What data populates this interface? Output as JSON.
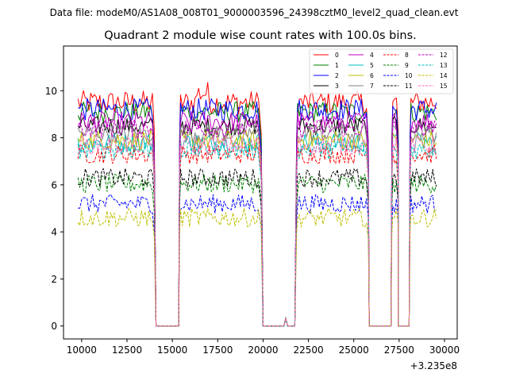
{
  "header": {
    "data_file": "Data file: modeM0/AS1A08_008T01_9000003596_24398cztM0_level2_quad_clean.evt"
  },
  "chart_data": {
    "type": "line",
    "title": "Quadrant 2 module wise count rates with 100.0s bins.",
    "xlabel": "",
    "ylabel": "",
    "x_offset_label": "+3.235e8",
    "xlim": [
      9000,
      30700
    ],
    "ylim": [
      -0.55,
      11.9
    ],
    "x_ticks": [
      10000,
      12500,
      15000,
      17500,
      20000,
      22500,
      25000,
      27500,
      30000
    ],
    "x_tick_labels": [
      "10000",
      "12500",
      "15000",
      "17500",
      "20000",
      "22500",
      "25000",
      "27500",
      "30000"
    ],
    "y_ticks": [
      0,
      2,
      4,
      6,
      8,
      10
    ],
    "y_tick_labels": [
      "0",
      "2",
      "4",
      "6",
      "8",
      "10"
    ],
    "grid": false,
    "legend_position": "top-right",
    "bin_size_s": 100,
    "segments": [
      {
        "start": 9800,
        "end": 13900
      },
      {
        "start": 15450,
        "end": 19800
      },
      {
        "start": 21900,
        "end": 25700
      },
      {
        "start": 27150,
        "end": 27350
      },
      {
        "start": 28150,
        "end": 29600
      }
    ],
    "segment_edges": [
      {
        "x": 14050,
        "prev_end": 13900,
        "next_start": null
      },
      {
        "x": 15350,
        "prev_end": null,
        "next_start": 15450
      },
      {
        "x": 19950,
        "prev_end": 19800,
        "next_start": null
      },
      {
        "x": 21750,
        "prev_end": null,
        "next_start": 21900
      },
      {
        "x": 25800,
        "prev_end": 25700,
        "next_start": null
      },
      {
        "x": 27100,
        "prev_end": null,
        "next_start": 27150
      },
      {
        "x": 27400,
        "prev_end": 27350,
        "next_start": null
      },
      {
        "x": 28050,
        "prev_end": null,
        "next_start": 28150
      }
    ],
    "gaps": [
      {
        "start": 14100,
        "end": 15350
      },
      {
        "start": 20000,
        "end": 21750
      },
      {
        "start": 25850,
        "end": 27050
      },
      {
        "start": 27450,
        "end": 28050
      }
    ],
    "spike": {
      "x": 21250,
      "value": 0.35
    },
    "series": [
      {
        "name": "0",
        "color": "#ff0000",
        "dash": "solid",
        "level": 9.5,
        "noise": 0.32
      },
      {
        "name": "1",
        "color": "#008000",
        "dash": "solid",
        "level": 9.1,
        "noise": 0.28
      },
      {
        "name": "2",
        "color": "#0000ff",
        "dash": "solid",
        "level": 9.2,
        "noise": 0.3
      },
      {
        "name": "3",
        "color": "#000000",
        "dash": "solid",
        "level": 8.5,
        "noise": 0.25
      },
      {
        "name": "4",
        "color": "#bf00bf",
        "dash": "solid",
        "level": 8.7,
        "noise": 0.27
      },
      {
        "name": "5",
        "color": "#00bfbf",
        "dash": "solid",
        "level": 7.8,
        "noise": 0.27
      },
      {
        "name": "6",
        "color": "#bfbf00",
        "dash": "solid",
        "level": 7.9,
        "noise": 0.27
      },
      {
        "name": "7",
        "color": "#808080",
        "dash": "solid",
        "level": 8.2,
        "noise": 0.25
      },
      {
        "name": "8",
        "color": "#ff0000",
        "dash": "dashed",
        "level": 7.3,
        "noise": 0.25
      },
      {
        "name": "9",
        "color": "#008000",
        "dash": "dashed",
        "level": 6.05,
        "noise": 0.25
      },
      {
        "name": "10",
        "color": "#0000ff",
        "dash": "dashed",
        "level": 5.2,
        "noise": 0.25
      },
      {
        "name": "11",
        "color": "#000000",
        "dash": "dashed",
        "level": 6.3,
        "noise": 0.25
      },
      {
        "name": "12",
        "color": "#bf00bf",
        "dash": "dashed",
        "level": 8.4,
        "noise": 0.25
      },
      {
        "name": "13",
        "color": "#00bfbf",
        "dash": "dashed",
        "level": 7.5,
        "noise": 0.25
      },
      {
        "name": "14",
        "color": "#bfbf00",
        "dash": "dashed",
        "level": 4.6,
        "noise": 0.25
      },
      {
        "name": "15",
        "color": "#ff69b4",
        "dash": "dashed",
        "level": 7.7,
        "noise": 0.25
      }
    ]
  }
}
